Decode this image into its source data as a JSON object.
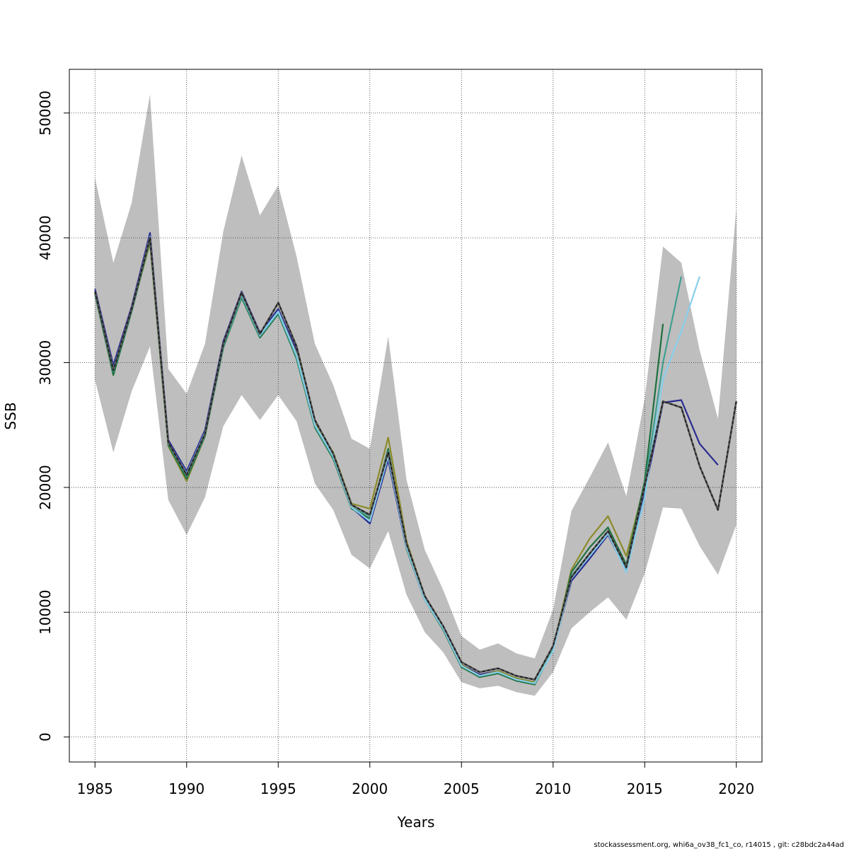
{
  "chart_data": {
    "type": "line",
    "title": "",
    "xlabel": "Years",
    "ylabel": "SSB",
    "xlim": [
      1983.6,
      2021.4
    ],
    "ylim": [
      -2000,
      53500
    ],
    "grid": true,
    "x_ticks": [
      1985,
      1990,
      1995,
      2000,
      2005,
      2010,
      2015,
      2020
    ],
    "x_tick_labels": [
      "1985",
      "1990",
      "1995",
      "2000",
      "2005",
      "2010",
      "2015",
      "2020"
    ],
    "y_ticks": [
      0,
      10000,
      20000,
      30000,
      40000,
      50000
    ],
    "y_tick_labels": [
      "0",
      "10000",
      "20000",
      "30000",
      "40000",
      "50000"
    ],
    "confidence_band": {
      "color": "#bebebe",
      "x": [
        1985,
        1986,
        1987,
        1988,
        1989,
        1990,
        1991,
        1992,
        1993,
        1994,
        1995,
        1996,
        1997,
        1998,
        1999,
        2000,
        2001,
        2002,
        2003,
        2004,
        2005,
        2006,
        2007,
        2008,
        2009,
        2010,
        2011,
        2012,
        2013,
        2014,
        2015,
        2016,
        2017,
        2018,
        2019,
        2020
      ],
      "upper": [
        44800,
        38000,
        42800,
        51500,
        29500,
        27500,
        31500,
        40500,
        46600,
        41800,
        44200,
        38500,
        31500,
        28200,
        23900,
        23100,
        32100,
        20600,
        15000,
        11800,
        8100,
        7000,
        7500,
        6700,
        6300,
        10200,
        18100,
        20800,
        23600,
        19300,
        27100,
        39300,
        38000,
        31000,
        25500,
        42300
      ],
      "lower": [
        28600,
        22800,
        27700,
        31300,
        19000,
        16200,
        19200,
        24900,
        27400,
        25400,
        27400,
        25300,
        20300,
        18200,
        14600,
        13500,
        16500,
        11400,
        8400,
        6800,
        4400,
        3900,
        4100,
        3600,
        3300,
        5200,
        8700,
        10000,
        11200,
        9400,
        13100,
        18400,
        18300,
        15300,
        13000,
        17000
      ]
    },
    "series": [
      {
        "color": "#2b2b8f",
        "dashed": false,
        "x": [
          1985,
          1986,
          1987,
          1988,
          1989,
          1990,
          1991,
          1992,
          1993,
          1994,
          1995,
          1996,
          1997,
          1998,
          1999,
          2000,
          2001,
          2002,
          2003,
          2004,
          2005,
          2006,
          2007,
          2008,
          2009,
          2010,
          2011,
          2012,
          2013,
          2014,
          2015,
          2016,
          2017,
          2018,
          2019
        ],
        "values": [
          35900,
          29800,
          34500,
          40400,
          23800,
          21300,
          24600,
          31700,
          35700,
          32400,
          34300,
          31000,
          25100,
          22600,
          18400,
          17100,
          22200,
          15100,
          11000,
          8800,
          5800,
          5000,
          5300,
          4700,
          4400,
          7000,
          12500,
          14300,
          16200,
          13300,
          19600,
          26800,
          27000,
          23500,
          21800
        ]
      },
      {
        "color": "#8b8b2b",
        "dashed": false,
        "x": [
          1985,
          1986,
          1987,
          1988,
          1989,
          1990,
          1991,
          1992,
          1993,
          1994,
          1995,
          1996,
          1997,
          1998,
          1999,
          2000,
          2001,
          2002,
          2003,
          2004,
          2005,
          2006,
          2007,
          2008,
          2009,
          2010,
          2011,
          2012,
          2013,
          2014,
          2015
        ],
        "values": [
          35500,
          29200,
          34200,
          39600,
          23300,
          20500,
          24100,
          31300,
          35200,
          32100,
          34100,
          30700,
          25100,
          22800,
          18700,
          18300,
          24000,
          15700,
          11300,
          8800,
          5800,
          4900,
          5300,
          4700,
          4400,
          7100,
          13400,
          15900,
          17700,
          14500,
          20300
        ]
      },
      {
        "color": "#1f6f3f",
        "dashed": false,
        "x": [
          1985,
          1986,
          1987,
          1988,
          1989,
          1990,
          1991,
          1992,
          1993,
          1994,
          1995,
          1996,
          1997,
          1998,
          1999,
          2000,
          2001,
          2002,
          2003,
          2004,
          2005,
          2006,
          2007,
          2008,
          2009,
          2010,
          2011,
          2012,
          2013,
          2014,
          2015,
          2016
        ],
        "values": [
          35500,
          29000,
          34100,
          39800,
          23400,
          20700,
          24100,
          31200,
          35200,
          32000,
          33900,
          30300,
          24800,
          22300,
          18300,
          17500,
          23100,
          15100,
          11000,
          8600,
          5600,
          4800,
          5100,
          4500,
          4200,
          7000,
          13200,
          15200,
          16800,
          13800,
          20500,
          33100
        ]
      },
      {
        "color": "#3f9f8f",
        "dashed": false,
        "x": [
          1985,
          1986,
          1987,
          1988,
          1989,
          1990,
          1991,
          1992,
          1993,
          1994,
          1995,
          1996,
          1997,
          1998,
          1999,
          2000,
          2001,
          2002,
          2003,
          2004,
          2005,
          2006,
          2007,
          2008,
          2009,
          2010,
          2011,
          2012,
          2013,
          2014,
          2015,
          2016,
          2017
        ],
        "values": [
          35600,
          29300,
          34200,
          39900,
          23500,
          20900,
          24200,
          31300,
          35300,
          32100,
          34000,
          30400,
          24900,
          22400,
          18400,
          17700,
          22900,
          15300,
          11100,
          8700,
          5700,
          4900,
          5200,
          4600,
          4300,
          7000,
          12900,
          14700,
          16500,
          13500,
          20000,
          30000,
          36900
        ]
      },
      {
        "color": "#87ceeb",
        "dashed": false,
        "x": [
          1985,
          1986,
          1987,
          1988,
          1989,
          1990,
          1991,
          1992,
          1993,
          1994,
          1995,
          1996,
          1997,
          1998,
          1999,
          2000,
          2001,
          2002,
          2003,
          2004,
          2005,
          2006,
          2007,
          2008,
          2009,
          2010,
          2011,
          2012,
          2013,
          2014,
          2015,
          2016,
          2017,
          2018
        ],
        "values": [
          35700,
          29500,
          34300,
          40100,
          23600,
          21100,
          24400,
          31500,
          35500,
          32200,
          34100,
          30600,
          25000,
          22500,
          18400,
          17300,
          22500,
          15200,
          11000,
          8700,
          5700,
          4900,
          5200,
          4600,
          4300,
          6900,
          12700,
          14500,
          16300,
          13200,
          19200,
          28700,
          32500,
          36900
        ]
      },
      {
        "color": "#222222",
        "dashed": true,
        "x": [
          1985,
          1986,
          1987,
          1988,
          1989,
          1990,
          1991,
          1992,
          1993,
          1994,
          1995,
          1996,
          1997,
          1998,
          1999,
          2000,
          2001,
          2002,
          2003,
          2004,
          2005,
          2006,
          2007,
          2008,
          2009,
          2010,
          2011,
          2012,
          2013,
          2014,
          2015,
          2016,
          2017,
          2018,
          2019,
          2020
        ],
        "values": [
          35700,
          29400,
          34300,
          40000,
          23600,
          21000,
          24300,
          31500,
          35600,
          32300,
          34800,
          31300,
          25400,
          22700,
          18600,
          17800,
          22800,
          15500,
          11300,
          8900,
          6000,
          5200,
          5500,
          4900,
          4600,
          7300,
          12800,
          14700,
          16500,
          13600,
          20100,
          26900,
          26400,
          21700,
          18200,
          26900
        ]
      }
    ]
  },
  "footer": "stockassessment.org, whi6a_ov38_fc1_co, r14015 , git: c28bdc2a44ad"
}
